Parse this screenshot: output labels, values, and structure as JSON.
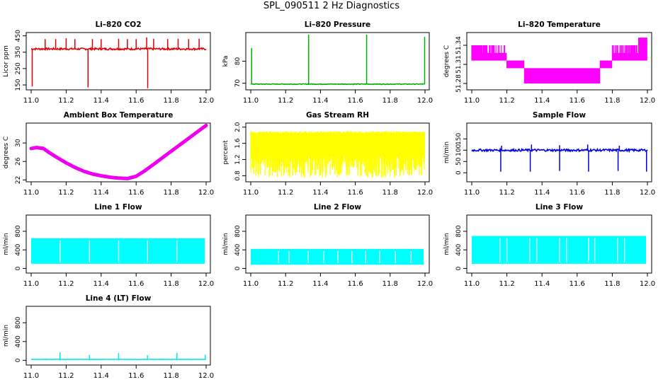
{
  "title": "SPL_090511  2 Hz Diagnostics",
  "x_ticks": [
    "11.0",
    "11.2",
    "11.4",
    "11.6",
    "11.8",
    "12.0"
  ],
  "chart_data": [
    {
      "id": "co2",
      "type": "line",
      "title": "Li–820 CO2",
      "ylabel": "Licor ppm",
      "color": "#e00000",
      "xlim": [
        11.0,
        12.0
      ],
      "ylim": [
        120,
        470
      ],
      "yticks": [
        "150",
        "250",
        "350",
        "450"
      ],
      "ytick_values": [
        150,
        250,
        350,
        450
      ],
      "baseline": 370,
      "noise": 6,
      "spikes": [
        [
          11.006,
          140
        ],
        [
          11.325,
          135
        ],
        [
          11.666,
          130
        ]
      ],
      "upspikes": [
        [
          11.08,
          430
        ],
        [
          11.14,
          430
        ],
        [
          11.2,
          435
        ],
        [
          11.25,
          430
        ],
        [
          11.35,
          430
        ],
        [
          11.4,
          430
        ],
        [
          11.5,
          432
        ],
        [
          11.55,
          430
        ],
        [
          11.6,
          430
        ],
        [
          11.66,
          440
        ],
        [
          11.7,
          432
        ],
        [
          11.78,
          430
        ],
        [
          11.84,
          432
        ],
        [
          11.9,
          430
        ],
        [
          11.96,
          432
        ]
      ]
    },
    {
      "id": "pressure",
      "type": "line",
      "title": "Li–820 Pressure",
      "ylabel": "kPa",
      "color": "#00b000",
      "xlim": [
        11.0,
        12.0
      ],
      "ylim": [
        67,
        93
      ],
      "yticks": [
        "70",
        "80"
      ],
      "ytick_values": [
        70,
        80
      ],
      "baseline": 69.6,
      "noise": 0.15,
      "upspikes": [
        [
          11.005,
          86
        ],
        [
          11.332,
          92
        ],
        [
          11.665,
          92
        ],
        [
          11.998,
          91
        ]
      ],
      "spikes": []
    },
    {
      "id": "temp",
      "type": "band",
      "title": "Li–820 Temperature",
      "ylabel": "degrees C",
      "color": "#ff00ff",
      "xlim": [
        11.0,
        12.0
      ],
      "ylim": [
        51.27,
        51.36
      ],
      "yticks": [
        "51.28",
        "51.31",
        "51.34"
      ],
      "ytick_values": [
        51.28,
        51.31,
        51.34
      ],
      "levels": [
        51.28,
        51.292,
        51.304,
        51.316,
        51.328,
        51.34,
        51.352
      ]
    },
    {
      "id": "boxtemp",
      "type": "scatter",
      "title": "Ambient Box Temperature",
      "ylabel": "degrees C",
      "color": "#ee00ee",
      "xlim": [
        11.0,
        12.0
      ],
      "ylim": [
        21.6,
        34.3
      ],
      "yticks": [
        "22",
        "26",
        "30"
      ],
      "ytick_values": [
        22,
        26,
        30
      ],
      "x": [
        11.0,
        11.03,
        11.07,
        11.1,
        11.15,
        11.2,
        11.25,
        11.3,
        11.35,
        11.4,
        11.45,
        11.5,
        11.55,
        11.6,
        11.65,
        11.7,
        11.75,
        11.8,
        11.85,
        11.9,
        11.95,
        12.0
      ],
      "y": [
        28.8,
        29.0,
        28.8,
        28.0,
        26.8,
        25.7,
        24.7,
        23.9,
        23.3,
        22.9,
        22.6,
        22.4,
        22.3,
        22.8,
        24.0,
        25.4,
        26.8,
        28.2,
        29.6,
        31.0,
        32.4,
        33.8
      ]
    },
    {
      "id": "rh",
      "type": "noise",
      "title": "Gas Stream RH",
      "ylabel": "percent",
      "color": "#ffff00",
      "xlim": [
        11.0,
        12.0
      ],
      "ylim": [
        0.65,
        2.1
      ],
      "yticks": [
        "0.8",
        "1.2",
        "1.6",
        "2.0"
      ],
      "ytick_values": [
        0.8,
        1.2,
        1.6,
        2.0
      ],
      "top": 1.9,
      "bottom": 0.75,
      "dense_low": 1.3
    },
    {
      "id": "sample",
      "type": "line",
      "title": "Sample Flow",
      "ylabel": "ml/min",
      "color": "#0000dd",
      "xlim": [
        11.0,
        12.0
      ],
      "ylim": [
        -40,
        220
      ],
      "yticks": [
        "0",
        "50",
        "100",
        "150"
      ],
      "ytick_values": [
        0,
        50,
        100,
        150
      ],
      "baseline": 100,
      "noise": 5,
      "spikes": [
        [
          11.165,
          5
        ],
        [
          11.333,
          5
        ],
        [
          11.5,
          8
        ],
        [
          11.665,
          5
        ],
        [
          11.833,
          8
        ],
        [
          11.995,
          5
        ]
      ],
      "upspikes": [
        [
          11.17,
          120
        ],
        [
          11.34,
          125
        ],
        [
          11.5,
          122
        ],
        [
          11.66,
          125
        ],
        [
          11.84,
          120
        ]
      ]
    },
    {
      "id": "line1",
      "type": "flowband",
      "title": "Line 1 Flow",
      "ylabel": "ml/min",
      "color": "#00ffff",
      "xlim": [
        11.0,
        12.0
      ],
      "ylim": [
        -100,
        1150
      ],
      "yticks": [
        "0",
        "400",
        "800"
      ],
      "ytick_values": [
        0,
        400,
        800
      ],
      "top": 650,
      "bottom": 100,
      "gaps": [
        11.165,
        11.333,
        11.5,
        11.665,
        11.833
      ]
    },
    {
      "id": "line2",
      "type": "flowband",
      "title": "Line 2 Flow",
      "ylabel": "ml/min",
      "color": "#00ffff",
      "xlim": [
        11.0,
        12.0
      ],
      "ylim": [
        -100,
        1150
      ],
      "yticks": [
        "0",
        "400",
        "800"
      ],
      "ytick_values": [
        0,
        400,
        800
      ],
      "top": 420,
      "bottom": 80,
      "gaps": [
        11.16,
        11.22,
        11.33,
        11.42,
        11.5,
        11.58,
        11.66,
        11.74,
        11.83,
        11.92
      ]
    },
    {
      "id": "line3",
      "type": "flowband",
      "title": "Line 3 Flow",
      "ylabel": "ml/min",
      "color": "#00ffff",
      "xlim": [
        11.0,
        12.0
      ],
      "ylim": [
        -100,
        1150
      ],
      "yticks": [
        "0",
        "400",
        "800"
      ],
      "ytick_values": [
        0,
        400,
        800
      ],
      "top": 700,
      "bottom": 100,
      "gaps": [
        11.16,
        11.2,
        11.33,
        11.37,
        11.5,
        11.54,
        11.665,
        11.7,
        11.83,
        11.87
      ]
    },
    {
      "id": "line4",
      "type": "line",
      "title": "Line 4 (LT) Flow",
      "ylabel": "ml/min",
      "color": "#00eeee",
      "xlim": [
        11.0,
        12.0
      ],
      "ylim": [
        -100,
        1150
      ],
      "yticks": [
        "0",
        "400",
        "800"
      ],
      "ytick_values": [
        0,
        400,
        800
      ],
      "baseline": 20,
      "noise": 4,
      "upspikes": [
        [
          11.165,
          170
        ],
        [
          11.333,
          110
        ],
        [
          11.5,
          160
        ],
        [
          11.665,
          110
        ],
        [
          11.833,
          160
        ],
        [
          11.995,
          120
        ]
      ],
      "spikes": []
    }
  ]
}
